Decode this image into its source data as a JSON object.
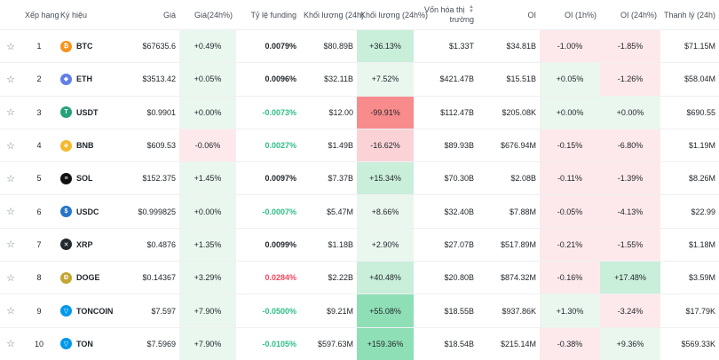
{
  "headers": {
    "rank": "Xếp hạng",
    "symbol": "Ký hiệu",
    "price": "Giá",
    "price_change": "Giá(24h%)",
    "funding": "Tỷ lệ funding",
    "volume": "Khối lượng (24h)",
    "volume_change": "Khối lượng (24h%)",
    "market_cap_line1": "Vốn hóa thị",
    "market_cap_line2": "trường",
    "oi": "OI",
    "oi_1h": "OI (1h%)",
    "oi_24h": "OI (24h%)",
    "liquidation": "Thanh lý (24h)"
  },
  "colors": {
    "green_bg_light": "#eaf7ef",
    "green_bg_mid": "#c9eed9",
    "green_bg_strong": "#8fdfb6",
    "red_bg_light": "#fde9eb",
    "red_bg_mid": "#fbd3d7",
    "red_bg_strong": "#f88c8c",
    "funding_green": "#2ebd85",
    "funding_red": "#f6465d"
  },
  "rows": [
    {
      "rank": "1",
      "symbol": "BTC",
      "icon": "bitcoin-icon",
      "icon_color": "#f7931a",
      "icon_glyph": "₿",
      "price": "$67635.6",
      "price_change": "+0.49%",
      "funding": "0.0079%",
      "funding_type": "neutral",
      "volume": "$80.89B",
      "volume_change": "+36.13%",
      "market_cap": "$1.33T",
      "oi": "$34.81B",
      "oi_1h": "-1.00%",
      "oi_24h": "-1.85%",
      "liquidation": "$71.15M"
    },
    {
      "rank": "2",
      "symbol": "ETH",
      "icon": "ethereum-icon",
      "icon_color": "#627eea",
      "icon_glyph": "◆",
      "price": "$3513.42",
      "price_change": "+0.05%",
      "funding": "0.0096%",
      "funding_type": "neutral",
      "volume": "$32.11B",
      "volume_change": "+7.52%",
      "market_cap": "$421.47B",
      "oi": "$15.51B",
      "oi_1h": "+0.05%",
      "oi_24h": "-1.26%",
      "liquidation": "$58.04M"
    },
    {
      "rank": "3",
      "symbol": "USDT",
      "icon": "tether-icon",
      "icon_color": "#26a17b",
      "icon_glyph": "T",
      "price": "$0.9901",
      "price_change": "+0.00%",
      "funding": "-0.0073%",
      "funding_type": "green",
      "volume": "$12.00",
      "volume_change": "-99.91%",
      "market_cap": "$112.47B",
      "oi": "$205.08K",
      "oi_1h": "+0.00%",
      "oi_24h": "+0.00%",
      "liquidation": "$690.55"
    },
    {
      "rank": "4",
      "symbol": "BNB",
      "icon": "bnb-icon",
      "icon_color": "#f3ba2f",
      "icon_glyph": "◈",
      "price": "$609.53",
      "price_change": "-0.06%",
      "funding": "0.0027%",
      "funding_type": "green",
      "volume": "$1.49B",
      "volume_change": "-16.62%",
      "market_cap": "$89.93B",
      "oi": "$676.94M",
      "oi_1h": "-0.15%",
      "oi_24h": "-6.80%",
      "liquidation": "$1.19M"
    },
    {
      "rank": "5",
      "symbol": "SOL",
      "icon": "solana-icon",
      "icon_color": "#111111",
      "icon_glyph": "≡",
      "price": "$152.375",
      "price_change": "+1.45%",
      "funding": "0.0097%",
      "funding_type": "neutral",
      "volume": "$7.37B",
      "volume_change": "+15.34%",
      "market_cap": "$70.30B",
      "oi": "$2.08B",
      "oi_1h": "-0.11%",
      "oi_24h": "-1.39%",
      "liquidation": "$8.26M"
    },
    {
      "rank": "6",
      "symbol": "USDC",
      "icon": "usdc-icon",
      "icon_color": "#2775ca",
      "icon_glyph": "$",
      "price": "$0.999825",
      "price_change": "+0.00%",
      "funding": "-0.0007%",
      "funding_type": "green",
      "volume": "$5.47M",
      "volume_change": "+8.66%",
      "market_cap": "$32.40B",
      "oi": "$7.88M",
      "oi_1h": "-0.05%",
      "oi_24h": "-4.13%",
      "liquidation": "$22.99"
    },
    {
      "rank": "7",
      "symbol": "XRP",
      "icon": "xrp-icon",
      "icon_color": "#23292f",
      "icon_glyph": "✕",
      "price": "$0.4876",
      "price_change": "+1.35%",
      "funding": "0.0099%",
      "funding_type": "neutral",
      "volume": "$1.18B",
      "volume_change": "+2.90%",
      "market_cap": "$27.07B",
      "oi": "$517.89M",
      "oi_1h": "-0.21%",
      "oi_24h": "-1.55%",
      "liquidation": "$1.18M"
    },
    {
      "rank": "8",
      "symbol": "DOGE",
      "icon": "doge-icon",
      "icon_color": "#c2a633",
      "icon_glyph": "Ð",
      "price": "$0.14367",
      "price_change": "+3.29%",
      "funding": "0.0284%",
      "funding_type": "red",
      "volume": "$2.22B",
      "volume_change": "+40.48%",
      "market_cap": "$20.80B",
      "oi": "$874.32M",
      "oi_1h": "-0.16%",
      "oi_24h": "+17.48%",
      "liquidation": "$3.59M"
    },
    {
      "rank": "9",
      "symbol": "TONCOIN",
      "icon": "toncoin-icon",
      "icon_color": "#0098ea",
      "icon_glyph": "▽",
      "price": "$7.597",
      "price_change": "+7.90%",
      "funding": "-0.0500%",
      "funding_type": "green",
      "volume": "$9.21M",
      "volume_change": "+55.08%",
      "market_cap": "$18.55B",
      "oi": "$937.86K",
      "oi_1h": "+1.30%",
      "oi_24h": "-3.24%",
      "liquidation": "$17.79K"
    },
    {
      "rank": "10",
      "symbol": "TON",
      "icon": "ton-icon",
      "icon_color": "#0098ea",
      "icon_glyph": "▽",
      "price": "$7.5969",
      "price_change": "+7.90%",
      "funding": "-0.0105%",
      "funding_type": "green",
      "volume": "$597.63M",
      "volume_change": "+159.36%",
      "market_cap": "$18.54B",
      "oi": "$215.14M",
      "oi_1h": "-0.38%",
      "oi_24h": "+9.36%",
      "liquidation": "$569.33K"
    }
  ]
}
